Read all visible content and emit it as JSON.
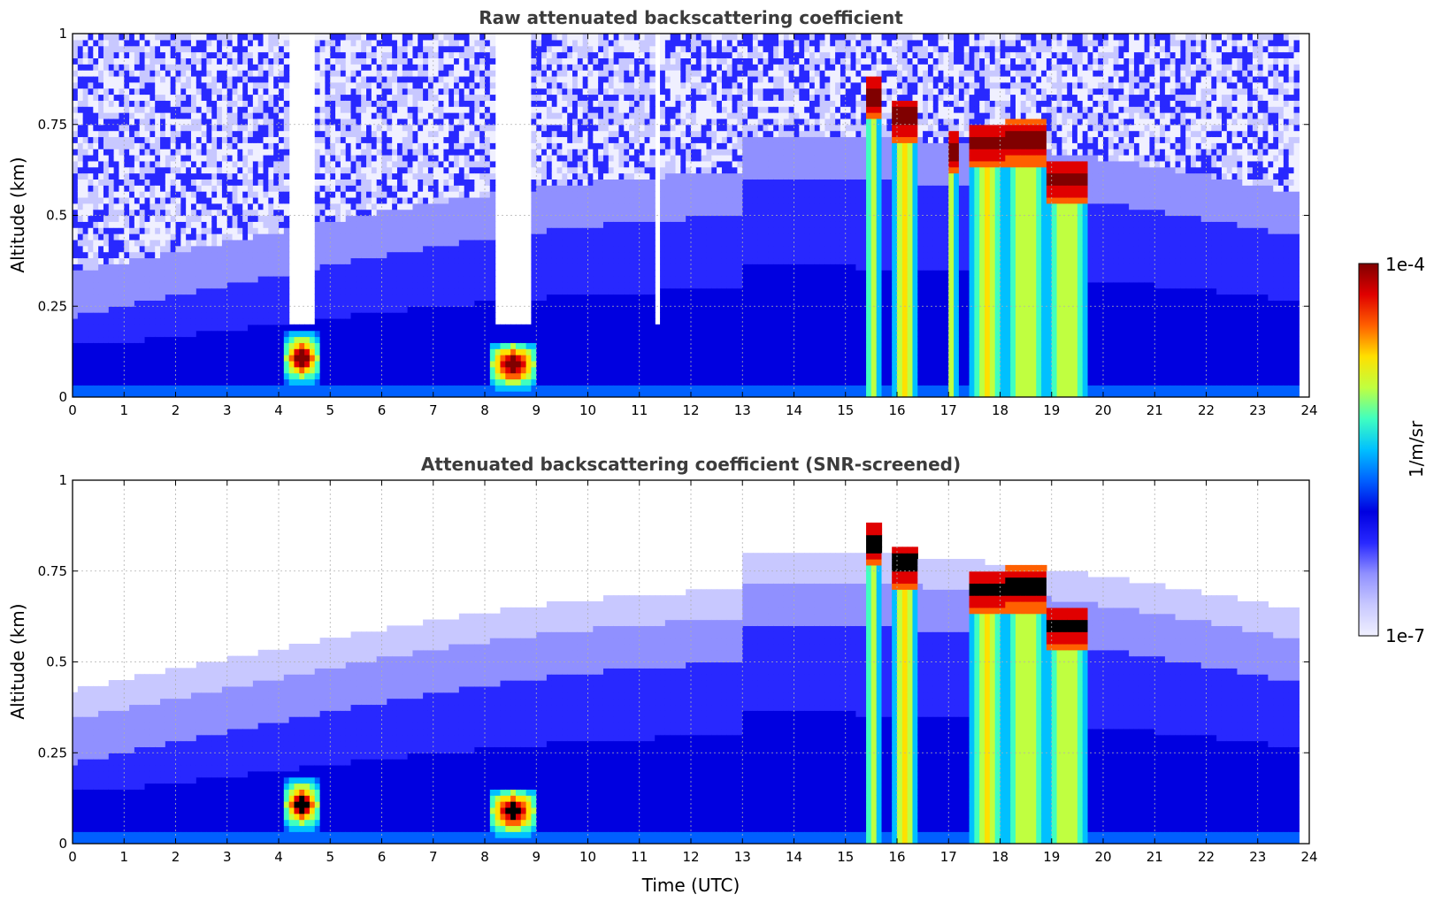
{
  "chart_data": [
    {
      "type": "heatmap",
      "title": "Raw attenuated backscattering coefficient",
      "xlabel": "",
      "ylabel": "Altitude (km)",
      "xlim": [
        0,
        24
      ],
      "ylim": [
        0,
        1
      ],
      "x_ticks": [
        "0",
        "1",
        "2",
        "3",
        "4",
        "5",
        "6",
        "7",
        "8",
        "9",
        "10",
        "11",
        "12",
        "13",
        "14",
        "15",
        "16",
        "17",
        "18",
        "19",
        "20",
        "21",
        "22",
        "23",
        "24"
      ],
      "y_ticks": [
        "0",
        "0.25",
        "0.5",
        "0.75",
        "1"
      ],
      "data_end_time_utc": 23.75,
      "gaps_utc": [
        [
          4.2,
          4.7
        ],
        [
          8.25,
          8.9
        ],
        [
          11.35,
          11.45
        ]
      ],
      "features": [
        {
          "name": "fog layer",
          "start": 4.15,
          "end": 4.75,
          "top_km": 0.19,
          "peak_km": 0.11
        },
        {
          "name": "fog layer",
          "start": 8.15,
          "end": 8.95,
          "top_km": 0.15,
          "peak_km": 0.09
        },
        {
          "name": "cloud",
          "start": 15.4,
          "end": 15.65,
          "top_km": 0.88
        },
        {
          "name": "cloud",
          "start": 15.9,
          "end": 16.4,
          "top_km": 0.82
        },
        {
          "name": "cloud",
          "start": 17.0,
          "end": 17.15,
          "top_km": 0.73
        },
        {
          "name": "cloud",
          "start": 17.4,
          "end": 18.1,
          "top_km": 0.75
        },
        {
          "name": "cloud",
          "start": 18.1,
          "end": 18.9,
          "top_km": 0.76
        },
        {
          "name": "cloud",
          "start": 18.95,
          "end": 19.65,
          "top_km": 0.65
        }
      ]
    },
    {
      "type": "heatmap",
      "title": "Attenuated backscattering coefficient (SNR-screened)",
      "xlabel": "Time (UTC)",
      "ylabel": "Altitude (km)",
      "xlim": [
        0,
        24
      ],
      "ylim": [
        0,
        1
      ],
      "x_ticks": [
        "0",
        "1",
        "2",
        "3",
        "4",
        "5",
        "6",
        "7",
        "8",
        "9",
        "10",
        "11",
        "12",
        "13",
        "14",
        "15",
        "16",
        "17",
        "18",
        "19",
        "20",
        "21",
        "22",
        "23",
        "24"
      ],
      "y_ticks": [
        "0",
        "0.25",
        "0.5",
        "0.75",
        "1"
      ],
      "data_end_time_utc": 23.75,
      "features": [
        {
          "name": "fog layer",
          "start": 4.15,
          "end": 4.75,
          "top_km": 0.19,
          "peak_km": 0.11
        },
        {
          "name": "fog layer",
          "start": 8.15,
          "end": 8.95,
          "top_km": 0.15,
          "peak_km": 0.09
        },
        {
          "name": "cloud",
          "start": 15.4,
          "end": 15.65,
          "top_km": 0.88
        },
        {
          "name": "cloud",
          "start": 15.9,
          "end": 16.4,
          "top_km": 0.82
        },
        {
          "name": "cloud",
          "start": 17.4,
          "end": 18.1,
          "top_km": 0.75
        },
        {
          "name": "cloud",
          "start": 18.1,
          "end": 18.9,
          "top_km": 0.76
        },
        {
          "name": "cloud",
          "start": 18.95,
          "end": 19.65,
          "top_km": 0.65
        }
      ]
    }
  ],
  "colorbar": {
    "label": "1/m/sr",
    "max_label": "1e-4",
    "min_label": "1e-7",
    "scale": "log",
    "colormap": [
      "#f0f0ff",
      "#c8c8ff",
      "#9090ff",
      "#2828ff",
      "#0000e0",
      "#0060ff",
      "#00c0ff",
      "#40ffc0",
      "#c0ff40",
      "#ffe000",
      "#ff6000",
      "#e00000",
      "#800000"
    ]
  }
}
